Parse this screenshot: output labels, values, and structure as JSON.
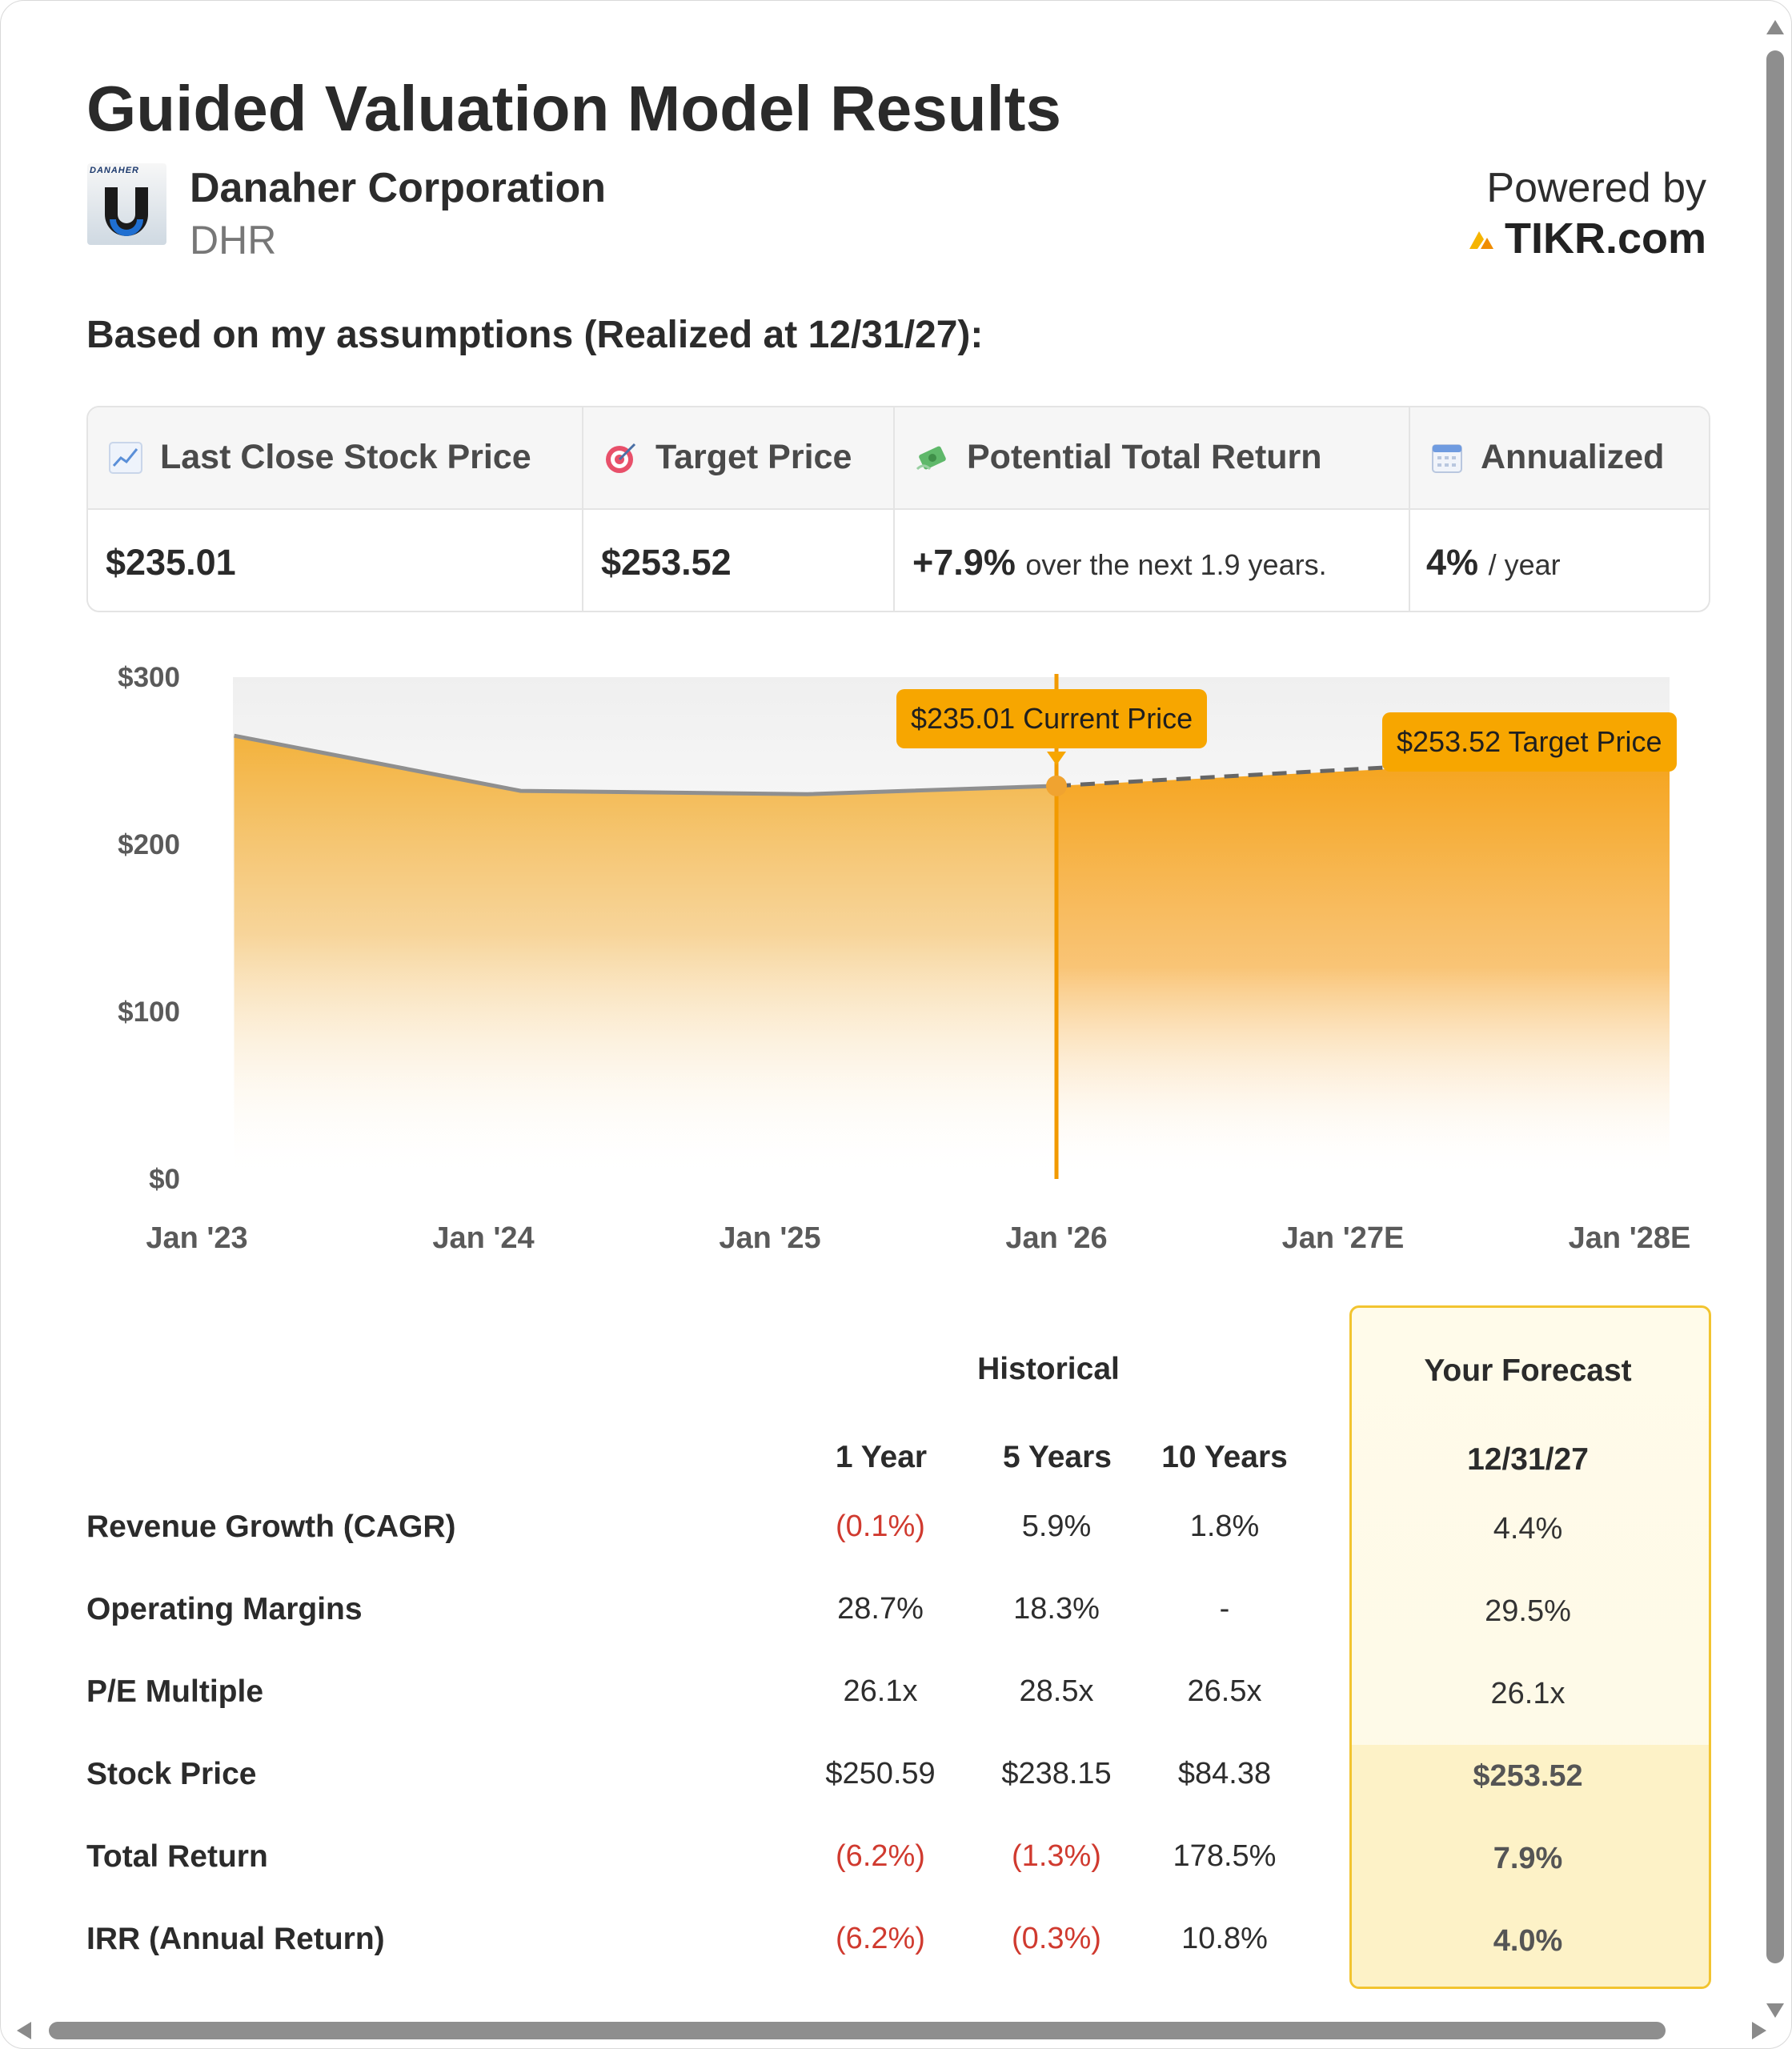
{
  "header": {
    "title": "Guided Valuation Model Results",
    "company": "Danaher Corporation",
    "ticker": "DHR",
    "logo_brand": "DANAHER",
    "powered_by": "Powered by",
    "tikr": "TIKR.com",
    "subtitle": "Based on my assumptions (Realized at 12/31/27):"
  },
  "summary": {
    "last_close_label": "Last Close Stock Price",
    "last_close_value": "$235.01",
    "target_label": "Target Price",
    "target_value": "$253.52",
    "return_label": "Potential Total Return",
    "return_value": "+7.9%",
    "return_suffix": "over the next 1.9 years.",
    "annualized_label": "Annualized",
    "annualized_value": "4%",
    "annualized_suffix": "/ year"
  },
  "chart_data": {
    "type": "area",
    "title": "",
    "x_labels": [
      "Jan '23",
      "Jan '24",
      "Jan '25",
      "Jan '26",
      "Jan '27E",
      "Jan '28E"
    ],
    "y_tick_labels": [
      "$300",
      "$200",
      "$100",
      "$0"
    ],
    "ylim": [
      0,
      300
    ],
    "historical": [
      {
        "x": 0.13,
        "y": 265
      },
      {
        "x": 1.13,
        "y": 232
      },
      {
        "x": 2.13,
        "y": 230
      },
      {
        "x": 3.0,
        "y": 235.01
      }
    ],
    "forecast": [
      {
        "x": 3.0,
        "y": 235.01
      },
      {
        "x": 5.0,
        "y": 253.52
      }
    ],
    "current_x": 3.0,
    "current_label": "$235.01 Current Price",
    "target_label": "$253.52 Target Price"
  },
  "returns_table": {
    "historical_header": "Historical",
    "forecast_header": "Your Forecast",
    "columns": [
      "1 Year",
      "5 Years",
      "10 Years"
    ],
    "forecast_date": "12/31/27",
    "rows": [
      {
        "label": "Revenue Growth (CAGR)",
        "values": [
          "(0.1%)",
          "5.9%",
          "1.8%"
        ],
        "forecast": "4.4%"
      },
      {
        "label": "Operating Margins",
        "values": [
          "28.7%",
          "18.3%",
          "-"
        ],
        "forecast": "29.5%"
      },
      {
        "label": "P/E Multiple",
        "values": [
          "26.1x",
          "28.5x",
          "26.5x"
        ],
        "forecast": "26.1x"
      },
      {
        "label": "Stock Price",
        "values": [
          "$250.59",
          "$238.15",
          "$84.38"
        ],
        "forecast": "$253.52"
      },
      {
        "label": "Total Return",
        "values": [
          "(6.2%)",
          "(1.3%)",
          "178.5%"
        ],
        "forecast": "7.9%"
      },
      {
        "label": "IRR (Annual Return)",
        "values": [
          "(6.2%)",
          "(0.3%)",
          "10.8%"
        ],
        "forecast": "4.0%"
      }
    ]
  },
  "colors": {
    "accent": "#f7a600",
    "negative": "#d03a2f",
    "forecast_border": "#f2c430"
  }
}
